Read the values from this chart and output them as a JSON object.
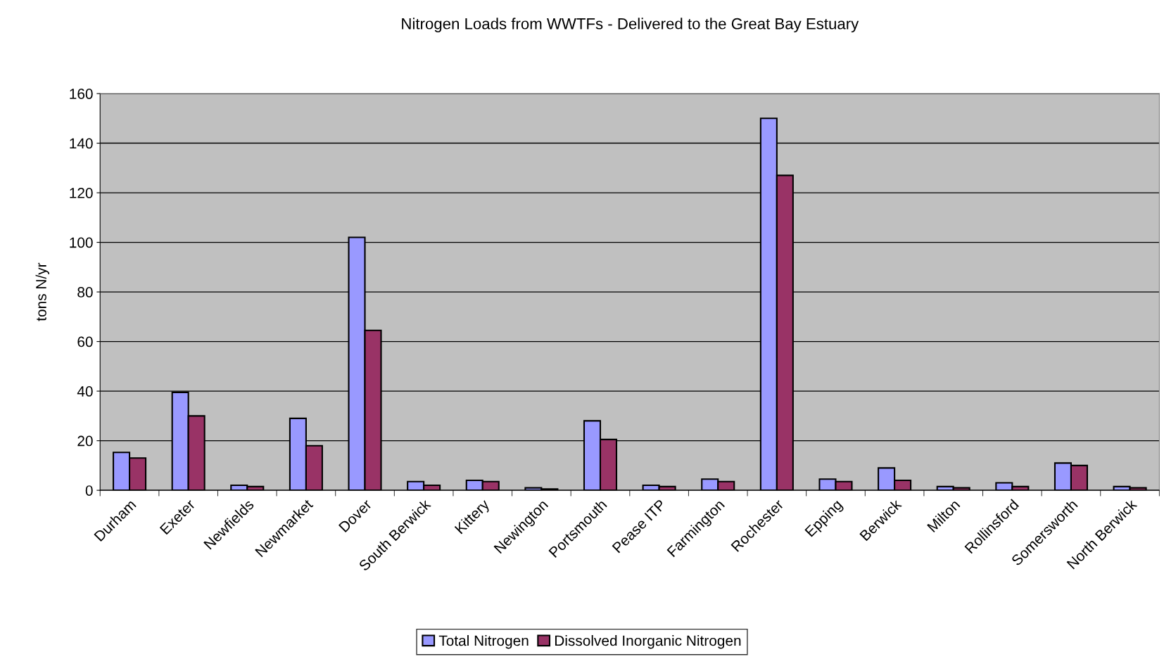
{
  "chart_data": {
    "type": "bar",
    "title": "Nitrogen Loads from WWTFs - Delivered to the Great Bay Estuary",
    "ylabel": "tons N/yr",
    "categories": [
      "Durham",
      "Exeter",
      "Newfields",
      "Newmarket",
      "Dover",
      "South Berwick",
      "Kittery",
      "Newington",
      "Portsmouth",
      "Pease ITP",
      "Farmington",
      "Rochester",
      "Epping",
      "Berwick",
      "Milton",
      "Rollinsford",
      "Somersworth",
      "North Berwick"
    ],
    "series": [
      {
        "name": "Total Nitrogen",
        "color": "#9999ff",
        "values": [
          15.3,
          39.5,
          2,
          29,
          102,
          3.5,
          4,
          1,
          28,
          2,
          4.5,
          150,
          4.5,
          9,
          1.5,
          3,
          11,
          1.5
        ]
      },
      {
        "name": "Dissolved Inorganic Nitrogen",
        "color": "#993366",
        "values": [
          13,
          30,
          1.5,
          18,
          64.5,
          2,
          3.5,
          0.5,
          20.5,
          1.5,
          3.5,
          127,
          3.5,
          4,
          1,
          1.5,
          10,
          1
        ]
      }
    ],
    "ylim": [
      0,
      160
    ],
    "yticks": [
      0,
      20,
      40,
      60,
      80,
      100,
      120,
      140,
      160
    ],
    "grid": "y",
    "legend": "bottom"
  }
}
